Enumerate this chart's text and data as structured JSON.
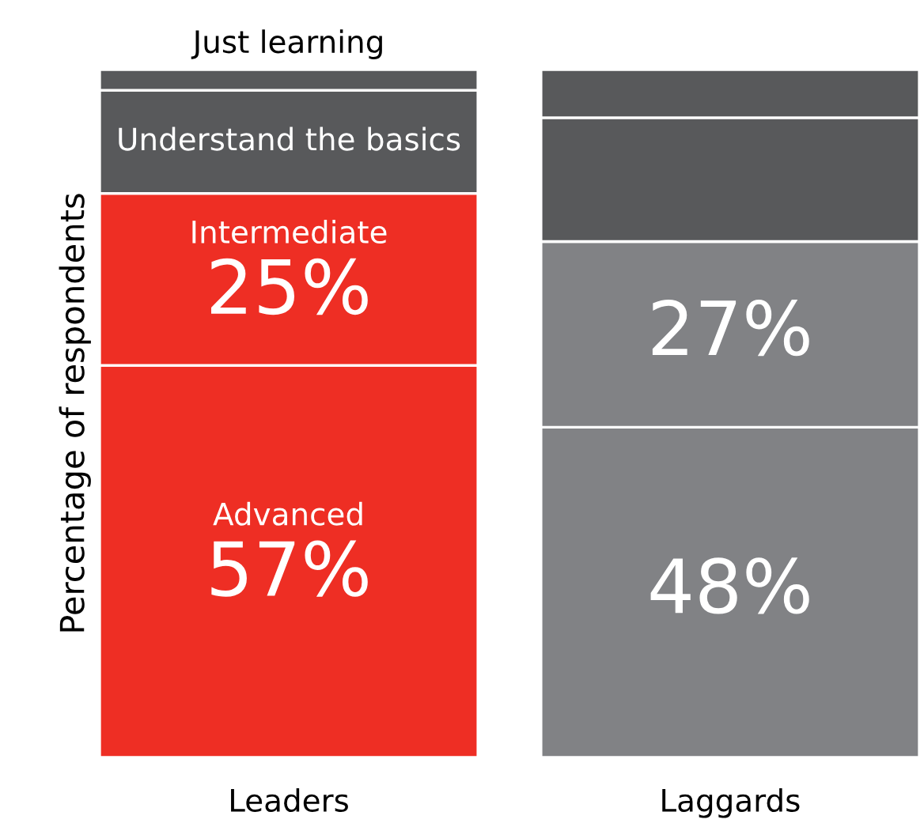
{
  "chart_data": {
    "type": "bar",
    "stacked": true,
    "ylabel": "Percentage of respondents",
    "categories": [
      "Leaders",
      "Laggards"
    ],
    "ylim": [
      0,
      100
    ],
    "tick_labels": "x",
    "grid": false,
    "legend": false,
    "series": [
      {
        "name": "Advanced",
        "colors": [
          "#ee2e24",
          "#818285"
        ],
        "values": [
          57,
          48
        ],
        "value_labels": [
          "57%",
          "48%"
        ]
      },
      {
        "name": "Intermediate",
        "colors": [
          "#ee2e24",
          "#818285"
        ],
        "values": [
          25,
          27
        ],
        "value_labels": [
          "25%",
          "27%"
        ]
      },
      {
        "name": "Understand the basics",
        "colors": [
          "#58595b",
          "#58595b"
        ],
        "values": [
          15,
          18
        ],
        "value_labels": [
          null,
          null
        ]
      },
      {
        "name": "Just learning",
        "colors": [
          "#58595b",
          "#58595b"
        ],
        "values": [
          3,
          7
        ],
        "value_labels": [
          null,
          null
        ]
      }
    ]
  }
}
